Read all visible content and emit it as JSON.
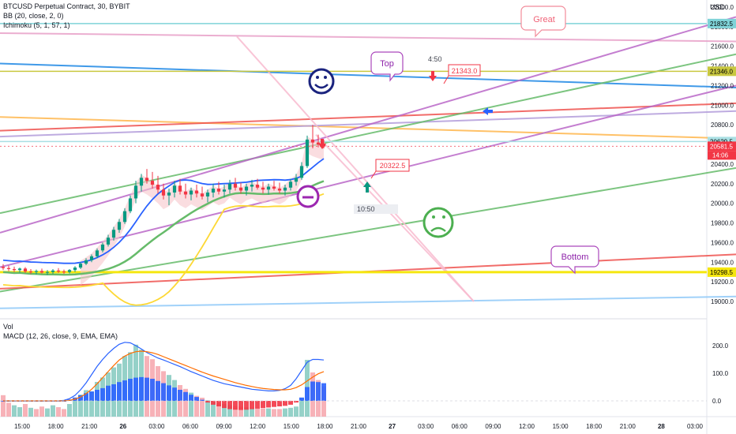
{
  "header": {
    "symbol_line": "BTCUSD Perpetual Contract, 30, BYBIT",
    "bb_line": "BB (20, close, 2, 0)",
    "ichimoku_line": "Ichimoku (5, 1, 57, 1)"
  },
  "price_axis": {
    "currency": "USD",
    "ticks": [
      "22000.0",
      "21800.0",
      "21600.0",
      "21400.0",
      "21200.0",
      "21000.0",
      "20800.0",
      "20600.0",
      "20400.0",
      "20200.0",
      "20000.0",
      "19800.0",
      "19600.0",
      "19400.0",
      "19200.0",
      "19000.0"
    ],
    "badges": [
      {
        "text": "21832.5",
        "price": 21832.5,
        "color": "#7fd3d8",
        "text_color": "#000000"
      },
      {
        "text": "21346.0",
        "price": 21346.0,
        "color": "#c9c840",
        "text_color": "#000000"
      },
      {
        "text": "20629.5",
        "price": 20629.5,
        "color": "#a9dfe3",
        "text_color": "#000000"
      },
      {
        "text": "20581.5",
        "price": 20581.5,
        "color": "#f23645",
        "text_color": "#ffffff"
      },
      {
        "text": "19298.5",
        "price": 19298.5,
        "color": "#f5e60f",
        "text_color": "#000000"
      }
    ],
    "countdown": "14:06"
  },
  "indicator_pane": {
    "vol_label": "Vol",
    "macd_label": "MACD (12, 26, close, 9, EMA, EMA)",
    "ticks": [
      "200.0",
      "100.0",
      "0.0"
    ]
  },
  "time_axis": {
    "ticks": [
      "15:00",
      "18:00",
      "21:00",
      "26",
      "03:00",
      "06:00",
      "09:00",
      "12:00",
      "15:00",
      "18:00",
      "21:00",
      "27",
      "03:00",
      "06:00",
      "09:00",
      "12:00",
      "15:00",
      "18:00",
      "21:00",
      "28",
      "03:00"
    ]
  },
  "annotations": {
    "great": "Great",
    "top": "Top",
    "bottom": "Bottom",
    "time_450": "4:50",
    "time_1050": "10:50",
    "price_21343": "21343.0",
    "price_20322": "20322.5"
  },
  "colors": {
    "up": "#089981",
    "down": "#f23645",
    "bb_basis": "#2962ff",
    "ichimoku_cloud": "#f7c6cc",
    "macd_line": "#2962ff",
    "signal_line": "#ff6d00",
    "smiley": "#1a237e",
    "sad_face": "#4caf50",
    "neutral_face": "#9c27b0"
  },
  "chart_data": {
    "type": "candlestick",
    "symbol": "BTCUSD",
    "interval": "30",
    "exchange": "BYBIT",
    "ylim": [
      18900,
      22150
    ],
    "last_price": 20581.5,
    "ohlc": [
      [
        19352,
        19380,
        19320,
        19340
      ],
      [
        19340,
        19365,
        19310,
        19330
      ],
      [
        19330,
        19355,
        19300,
        19320
      ],
      [
        19320,
        19345,
        19295,
        19335
      ],
      [
        19335,
        19350,
        19290,
        19305
      ],
      [
        19305,
        19330,
        19280,
        19300
      ],
      [
        19300,
        19325,
        19275,
        19310
      ],
      [
        19310,
        19335,
        19285,
        19295
      ],
      [
        19295,
        19320,
        19270,
        19300
      ],
      [
        19300,
        19330,
        19280,
        19315
      ],
      [
        19315,
        19340,
        19290,
        19305
      ],
      [
        19305,
        19325,
        19280,
        19300
      ],
      [
        19300,
        19330,
        19285,
        19320
      ],
      [
        19320,
        19360,
        19300,
        19345
      ],
      [
        19345,
        19400,
        19330,
        19385
      ],
      [
        19385,
        19440,
        19370,
        19420
      ],
      [
        19420,
        19480,
        19400,
        19460
      ],
      [
        19460,
        19540,
        19440,
        19520
      ],
      [
        19520,
        19600,
        19500,
        19580
      ],
      [
        19580,
        19680,
        19560,
        19650
      ],
      [
        19650,
        19760,
        19620,
        19730
      ],
      [
        19730,
        19840,
        19700,
        19810
      ],
      [
        19810,
        19950,
        19790,
        19920
      ],
      [
        19920,
        20080,
        19900,
        20050
      ],
      [
        20050,
        20230,
        20000,
        20180
      ],
      [
        20180,
        20300,
        20120,
        20260
      ],
      [
        20260,
        20350,
        20200,
        20230
      ],
      [
        20230,
        20320,
        20150,
        20190
      ],
      [
        20190,
        20280,
        20100,
        20140
      ],
      [
        20140,
        20200,
        20040,
        20080
      ],
      [
        20080,
        20150,
        19980,
        20110
      ],
      [
        20110,
        20230,
        20060,
        20180
      ],
      [
        20180,
        20250,
        20090,
        20120
      ],
      [
        20120,
        20200,
        20050,
        20090
      ],
      [
        20090,
        20160,
        20030,
        20130
      ],
      [
        20130,
        20190,
        20060,
        20100
      ],
      [
        20100,
        20170,
        20040,
        20070
      ],
      [
        20070,
        20140,
        20010,
        20110
      ],
      [
        20110,
        20200,
        20060,
        20150
      ],
      [
        20150,
        20220,
        20090,
        20120
      ],
      [
        20120,
        20190,
        20060,
        20140
      ],
      [
        20140,
        20240,
        20100,
        20200
      ],
      [
        20200,
        20260,
        20130,
        20160
      ],
      [
        20160,
        20210,
        20100,
        20130
      ],
      [
        20130,
        20200,
        20080,
        20170
      ],
      [
        20170,
        20240,
        20120,
        20190
      ],
      [
        20190,
        20250,
        20140,
        20160
      ],
      [
        20160,
        20220,
        20100,
        20140
      ],
      [
        20140,
        20200,
        20090,
        20170
      ],
      [
        20170,
        20230,
        20130,
        20150
      ],
      [
        20150,
        20210,
        20100,
        20130
      ],
      [
        20130,
        20190,
        20080,
        20160
      ],
      [
        20160,
        20250,
        20130,
        20220
      ],
      [
        20220,
        20300,
        20180,
        20260
      ],
      [
        20260,
        20420,
        20240,
        20380
      ],
      [
        20380,
        20690,
        20360,
        20650
      ],
      [
        20650,
        20800,
        20560,
        20620
      ],
      [
        20620,
        20700,
        20570,
        20600
      ],
      [
        20600,
        20650,
        20560,
        20581.5
      ]
    ],
    "volume": [
      34,
      22,
      18,
      15,
      20,
      14,
      12,
      16,
      13,
      18,
      15,
      12,
      20,
      26,
      35,
      42,
      40,
      55,
      62,
      70,
      78,
      84,
      96,
      102,
      114,
      106,
      96,
      91,
      80,
      72,
      66,
      58,
      50,
      44,
      38,
      33,
      30,
      26,
      24,
      22,
      20,
      18,
      17,
      16,
      15,
      14,
      14,
      13,
      13,
      12,
      12,
      13,
      14,
      16,
      30,
      90,
      70,
      58,
      48
    ],
    "volume_up": [
      false,
      false,
      true,
      true,
      false,
      true,
      false,
      false,
      true,
      true,
      false,
      false,
      true,
      true,
      true,
      true,
      true,
      true,
      true,
      true,
      true,
      true,
      true,
      true,
      true,
      true,
      false,
      false,
      false,
      false,
      true,
      true,
      false,
      false,
      true,
      false,
      false,
      true,
      true,
      false,
      true,
      true,
      false,
      false,
      true,
      true,
      false,
      false,
      true,
      false,
      false,
      true,
      true,
      true,
      true,
      true,
      false,
      false,
      false
    ],
    "macd_hist": [
      0,
      0,
      0,
      0,
      0,
      0,
      0,
      0,
      0,
      0,
      0,
      0,
      5,
      12,
      20,
      28,
      34,
      40,
      46,
      55,
      60,
      68,
      74,
      80,
      84,
      86,
      84,
      80,
      72,
      64,
      56,
      48,
      40,
      32,
      22,
      14,
      4,
      -6,
      -14,
      -20,
      -26,
      -30,
      -32,
      -33,
      -32,
      -30,
      -28,
      -26,
      -24,
      -22,
      -20,
      -18,
      -14,
      -6,
      12,
      50,
      70,
      68,
      64
    ],
    "macd_line": [
      0,
      0,
      0,
      0,
      0,
      0,
      0,
      0,
      0,
      0,
      0,
      2,
      8,
      20,
      40,
      65,
      95,
      125,
      150,
      172,
      190,
      205,
      212,
      210,
      200,
      188,
      175,
      165,
      155,
      148,
      140,
      132,
      124,
      115,
      106,
      98,
      90,
      82,
      74,
      68,
      62,
      58,
      54,
      50,
      46,
      42,
      40,
      38,
      36,
      36,
      38,
      44,
      56,
      80,
      110,
      140,
      150,
      150,
      148
    ],
    "signal_line": [
      0,
      0,
      0,
      0,
      0,
      0,
      0,
      0,
      0,
      0,
      0,
      0,
      2,
      6,
      14,
      26,
      42,
      62,
      84,
      106,
      128,
      148,
      162,
      172,
      178,
      180,
      178,
      174,
      168,
      160,
      152,
      144,
      136,
      128,
      120,
      112,
      104,
      97,
      90,
      84,
      78,
      72,
      66,
      61,
      56,
      52,
      48,
      45,
      43,
      41,
      40,
      40,
      42,
      48,
      58,
      72,
      86,
      98,
      106
    ],
    "horizontal_levels": [
      {
        "price": 21832.5,
        "color": "#7fd3d8"
      },
      {
        "price": 21346.0,
        "color": "#c9c840"
      },
      {
        "price": 20629.5,
        "color": "#a9dfe3"
      },
      {
        "price": 19298.5,
        "color": "#f5e60f"
      }
    ],
    "trend_lines": [
      {
        "color": "#e8a0c8",
        "p1": [
          0,
          21735
        ],
        "p2": [
          932,
          21650
        ]
      },
      {
        "color": "#1e88e5",
        "p1": [
          0,
          21425
        ],
        "p2": [
          932,
          21180
        ]
      },
      {
        "color": "#ffb74d",
        "p1": [
          0,
          20880
        ],
        "p2": [
          932,
          20660
        ]
      },
      {
        "color": "#b39ddb",
        "p1": [
          0,
          20680
        ],
        "p2": [
          932,
          20940
        ]
      },
      {
        "color": "#ef5350",
        "p1": [
          0,
          20740
        ],
        "p2": [
          932,
          21020
        ]
      },
      {
        "color": "#66bb6a",
        "p1": [
          0,
          19900
        ],
        "p2": [
          932,
          21520
        ]
      },
      {
        "color": "#ba68c8",
        "p1": [
          0,
          19700
        ],
        "p2": [
          932,
          21900
        ]
      },
      {
        "color": "#ba68c8",
        "p1": [
          0,
          19350
        ],
        "p2": [
          932,
          21200
        ]
      },
      {
        "color": "#66bb6a",
        "p1": [
          0,
          19100
        ],
        "p2": [
          932,
          20360
        ]
      },
      {
        "color": "#ef5350",
        "p1": [
          0,
          19130
        ],
        "p2": [
          932,
          19480
        ]
      },
      {
        "color": "#90caf9",
        "p1": [
          0,
          18930
        ],
        "p2": [
          932,
          19050
        ]
      },
      {
        "color": "#f8bbd0",
        "p1": [
          300,
          21700
        ],
        "p2": [
          600,
          19000
        ]
      },
      {
        "color": "#f8bbd0",
        "p1": [
          400,
          20700
        ],
        "p2": [
          600,
          19000
        ]
      }
    ]
  }
}
